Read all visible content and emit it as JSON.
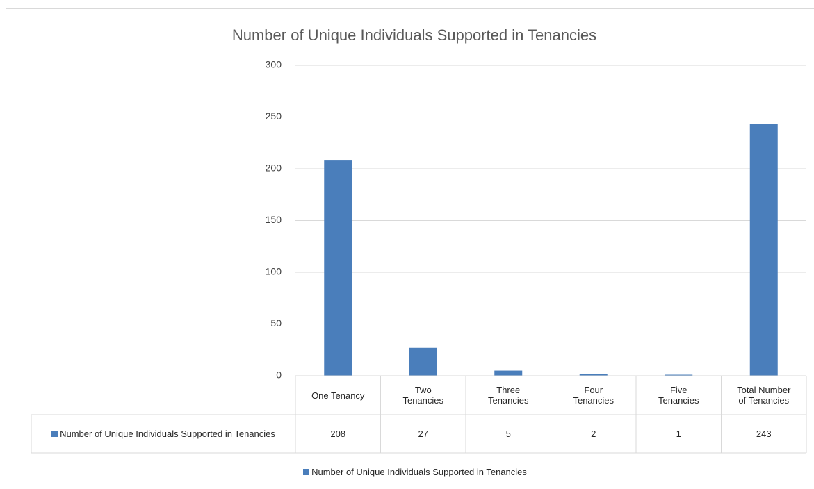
{
  "chart_data": {
    "type": "bar",
    "title": "Number of Unique Individuals Supported in Tenancies",
    "categories": [
      "One Tenancy",
      "Two Tenancies",
      "Three Tenancies",
      "Four Tenancies",
      "Five Tenancies",
      "Total Number of Tenancies"
    ],
    "series": [
      {
        "name": "Number of Unique Individuals Supported in Tenancies",
        "color": "#4a7ebb",
        "values": [
          208,
          27,
          5,
          2,
          1,
          243
        ]
      }
    ],
    "ylim": [
      0,
      300
    ],
    "yticks": [
      0,
      50,
      100,
      150,
      200,
      250,
      300
    ],
    "grid": true,
    "data_table": true,
    "legend": "bottom"
  }
}
